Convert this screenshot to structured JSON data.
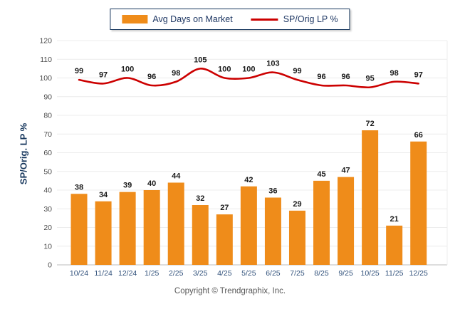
{
  "legend": {
    "items": [
      {
        "label": "Avg Days on Market",
        "swatch": "bar",
        "color": "#EF8C1A"
      },
      {
        "label": "SP/Orig LP %",
        "swatch": "line",
        "color": "#CC0000"
      }
    ]
  },
  "chart_data": {
    "type": "combo",
    "categories": [
      "10/24",
      "11/24",
      "12/24",
      "1/25",
      "2/25",
      "3/25",
      "4/25",
      "5/25",
      "6/25",
      "7/25",
      "8/25",
      "9/25",
      "10/25",
      "11/25",
      "12/25"
    ],
    "series": [
      {
        "name": "Avg Days on Market",
        "type": "bar",
        "color": "#EF8C1A",
        "values": [
          38,
          34,
          39,
          40,
          44,
          32,
          27,
          42,
          36,
          29,
          45,
          47,
          72,
          21,
          66
        ]
      },
      {
        "name": "SP/Orig LP %",
        "type": "line",
        "color": "#CC0000",
        "values": [
          99,
          97,
          100,
          96,
          98,
          105,
          100,
          100,
          103,
          99,
          96,
          96,
          95,
          98,
          97
        ]
      }
    ],
    "ylabel": "SP/Orig. LP %",
    "ylim": [
      0,
      120
    ],
    "ytick_step": 10,
    "grid": true,
    "legend_position": "top",
    "value_labels": true
  },
  "footer": {
    "copyright": "Copyright © Trendgraphix, Inc."
  }
}
